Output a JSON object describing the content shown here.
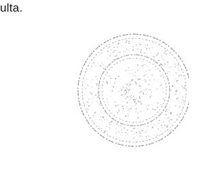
{
  "document": {
    "text": "ulta."
  }
}
